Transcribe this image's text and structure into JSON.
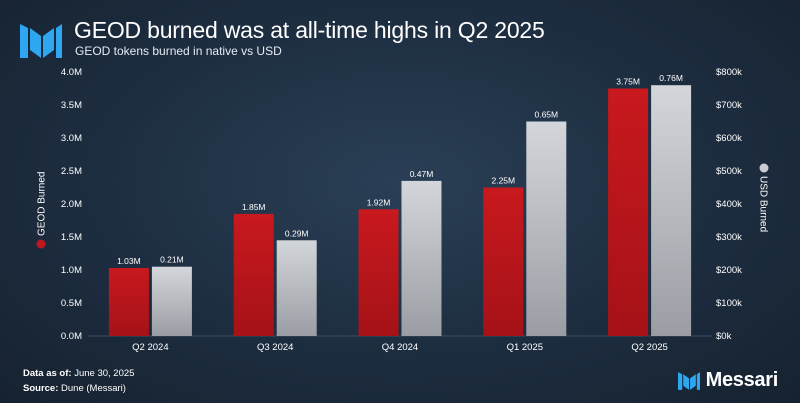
{
  "header": {
    "title": "GEOD burned was at all-time highs in Q2 2025",
    "subtitle": "GEOD tokens burned in native vs USD",
    "logo": "messari-logo-icon"
  },
  "footer": {
    "data_label": "Data as of:",
    "data_value": "June 30, 2025",
    "source_label": "Source:",
    "source_value": "Dune (Messari)",
    "brand": "Messari"
  },
  "chart_data": {
    "type": "bar",
    "title": "GEOD burned was at all-time highs in Q2 2025",
    "subtitle": "GEOD tokens burned in native vs USD",
    "categories": [
      "Q2 2024",
      "Q3 2024",
      "Q4 2024",
      "Q1 2025",
      "Q2 2025"
    ],
    "series": [
      {
        "name": "GEOD Burned",
        "axis": "left",
        "color": "#c0171c",
        "values": [
          1030000,
          1850000,
          1920000,
          2250000,
          3750000
        ],
        "labels": [
          "1.03M",
          "1.85M",
          "1.92M",
          "2.25M",
          "3.75M"
        ]
      },
      {
        "name": "USD Burned",
        "axis": "right",
        "color": "#c9ccd1",
        "values": [
          210000,
          290000,
          470000,
          650000,
          760000
        ],
        "labels": [
          "0.21M",
          "0.29M",
          "0.47M",
          "0.65M",
          "0.76M"
        ]
      }
    ],
    "ylabel_left": "GEOD Burned",
    "ylabel_right": "USD Burned",
    "ylim_left": [
      0,
      4000000
    ],
    "ylim_right": [
      0,
      800000
    ],
    "yticks_left": [
      "0.0M",
      "0.5M",
      "1.0M",
      "1.5M",
      "2.0M",
      "2.5M",
      "3.0M",
      "3.5M",
      "4.0M"
    ],
    "yticks_right": [
      "$0k",
      "$100k",
      "$200k",
      "$300k",
      "$400k",
      "$500k",
      "$600k",
      "$700k",
      "$800k"
    ],
    "grid": false,
    "legend": "axis-titles"
  }
}
